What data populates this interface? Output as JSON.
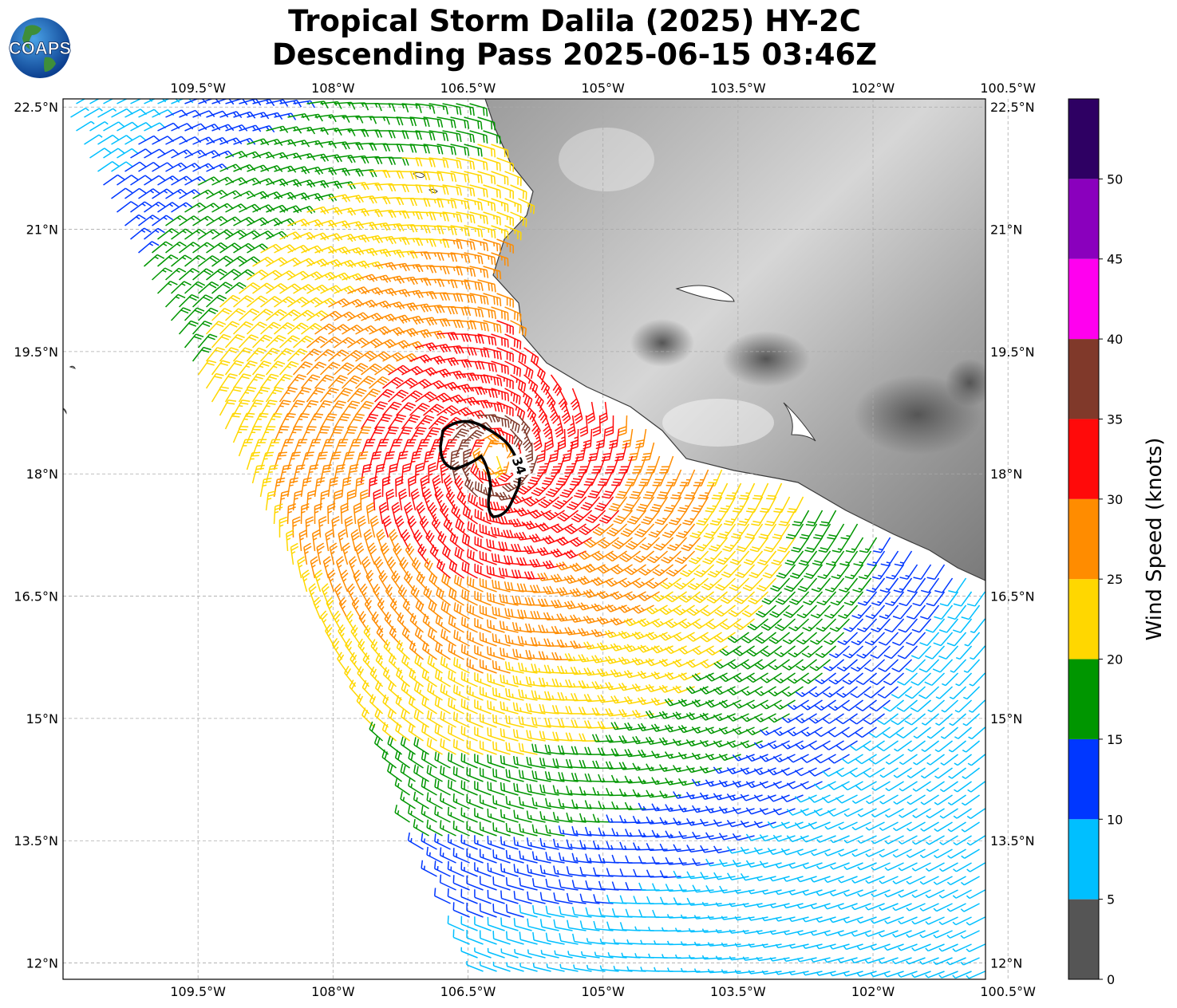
{
  "title": {
    "line1": "Tropical Storm Dalila (2025) HY-2C",
    "line2": "Descending Pass 2025-06-15 03:46Z"
  },
  "logo": {
    "text": "COAPS",
    "icon": "globe-icon"
  },
  "map": {
    "lon_range": [
      -111.0,
      -100.75
    ],
    "lat_range": [
      11.8,
      22.6
    ],
    "lon_ticks": [
      "109.5°W",
      "108°W",
      "106.5°W",
      "105°W",
      "103.5°W",
      "102°W",
      "100.5°W"
    ],
    "lat_ticks": [
      "22.5°N",
      "21°N",
      "19.5°N",
      "18°N",
      "16.5°N",
      "15°N",
      "13.5°N",
      "12°N"
    ],
    "grid": true,
    "land_shading": "grayscale terrain",
    "contour_label": "34",
    "storm_center": {
      "lon": -106.2,
      "lat": 18.2
    }
  },
  "colorbar": {
    "label": "Wind Speed (knots)",
    "ticks": [
      "0",
      "5",
      "10",
      "15",
      "20",
      "25",
      "30",
      "35",
      "40",
      "45",
      "50"
    ],
    "bins": [
      {
        "from": 0,
        "to": 5,
        "color": "#555555"
      },
      {
        "from": 5,
        "to": 10,
        "color": "#00bfff"
      },
      {
        "from": 10,
        "to": 15,
        "color": "#0037ff"
      },
      {
        "from": 15,
        "to": 20,
        "color": "#009600"
      },
      {
        "from": 20,
        "to": 25,
        "color": "#ffd700"
      },
      {
        "from": 25,
        "to": 30,
        "color": "#ff8c00"
      },
      {
        "from": 30,
        "to": 35,
        "color": "#ff0a0a"
      },
      {
        "from": 35,
        "to": 40,
        "color": "#80392a"
      },
      {
        "from": 40,
        "to": 45,
        "color": "#ff00ef"
      },
      {
        "from": 45,
        "to": 50,
        "color": "#8a00bd"
      },
      {
        "from": 50,
        "to": 55,
        "color": "#2e0063"
      }
    ]
  }
}
